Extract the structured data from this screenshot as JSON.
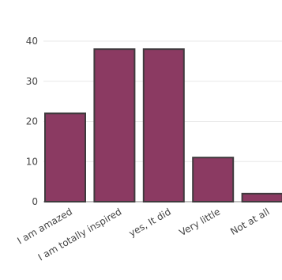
{
  "chart_data": {
    "type": "bar",
    "title": "",
    "xlabel": "",
    "ylabel": "",
    "categories": [
      "I am amazed",
      "I am totally inspired",
      "yes, It did",
      "Very little",
      "Not at all"
    ],
    "values": [
      22,
      38,
      38,
      11,
      2
    ],
    "ylim": [
      0,
      40
    ],
    "yticks": [
      0,
      10,
      20,
      30,
      40
    ],
    "grid": true,
    "legend": "none",
    "colors": {
      "bar_fill": "#8b3a62",
      "bar_stroke": "#3f3a3d",
      "grid": "#e8e8e8",
      "text": "#444444"
    }
  }
}
